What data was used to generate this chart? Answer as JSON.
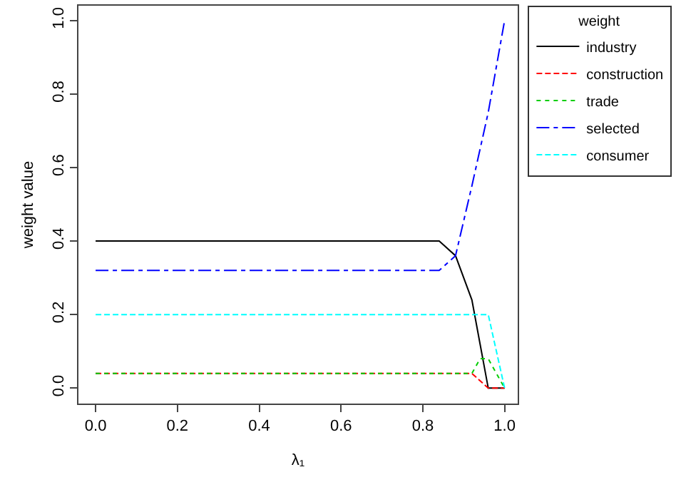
{
  "chart_data": {
    "type": "line",
    "xlabel": "λ₁",
    "ylabel": "weight value",
    "legend_title": "weight",
    "legend": "top right",
    "grid": false,
    "x": [
      0,
      0.84,
      0.88,
      0.92,
      0.94,
      0.96,
      1.0
    ],
    "xlim": [
      -0.042,
      1.032
    ],
    "xticks": [
      {
        "value": 0,
        "label": "0.0"
      },
      0.2,
      0.4,
      0.6,
      0.8,
      {
        "value": 1,
        "label": "1.0"
      }
    ],
    "ylim": [
      -0.042,
      1.04
    ],
    "yticks": [
      {
        "value": 0,
        "label": "0.0"
      },
      0.2,
      0.4,
      0.6,
      0.8,
      {
        "value": 1,
        "label": "1.0"
      }
    ],
    "series": [
      {
        "name": "industry",
        "color": "#000000",
        "line_style": "solid",
        "values": [
          0.4,
          0.4,
          0.36,
          0.24,
          0.12,
          0,
          0
        ]
      },
      {
        "name": "construction",
        "color": "#ff0000",
        "line_style": "dashed",
        "values": [
          0.04,
          0.04,
          0.04,
          0.04,
          0.02,
          0,
          0
        ]
      },
      {
        "name": "trade",
        "color": "#00cd00",
        "line_style": "dotted",
        "values": [
          0.04,
          0.04,
          0.04,
          0.04,
          0.08,
          0.08,
          0
        ]
      },
      {
        "name": "selected",
        "color": "#0000ff",
        "line_style": "dashdot",
        "values": [
          0.32,
          0.32,
          0.36,
          0.55,
          0.65,
          0.75,
          1.0
        ]
      },
      {
        "name": "consumer",
        "color": "#00ffff",
        "line_style": "dashed",
        "values": [
          0.2,
          0.2,
          0.2,
          0.2,
          0.2,
          0.2,
          0
        ]
      }
    ]
  }
}
